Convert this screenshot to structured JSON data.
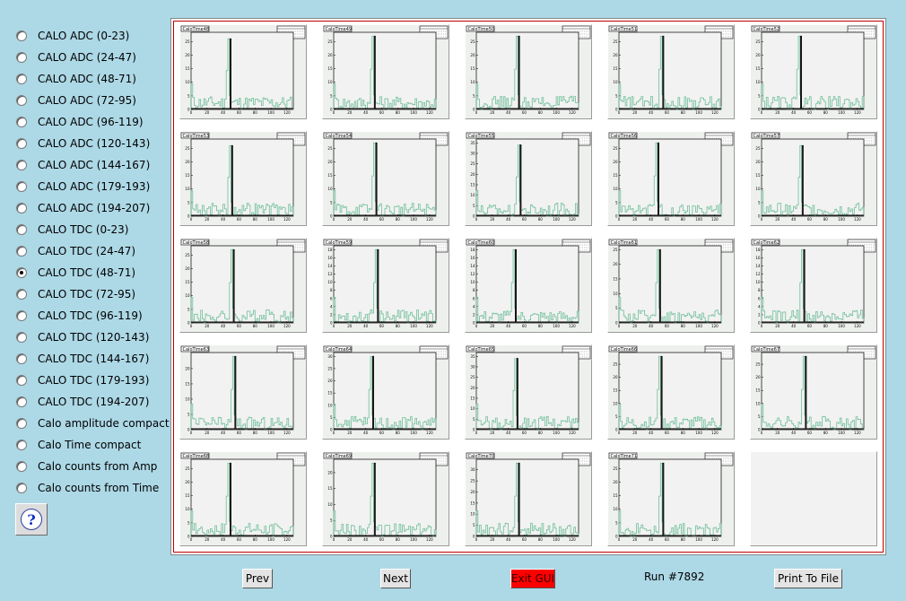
{
  "sidebar": {
    "options": [
      {
        "label": "CALO ADC (0-23)",
        "selected": false
      },
      {
        "label": "CALO ADC (24-47)",
        "selected": false
      },
      {
        "label": "CALO ADC (48-71)",
        "selected": false
      },
      {
        "label": "CALO ADC (72-95)",
        "selected": false
      },
      {
        "label": "CALO ADC (96-119)",
        "selected": false
      },
      {
        "label": "CALO ADC (120-143)",
        "selected": false
      },
      {
        "label": "CALO ADC (144-167)",
        "selected": false
      },
      {
        "label": "CALO ADC (179-193)",
        "selected": false
      },
      {
        "label": "CALO ADC (194-207)",
        "selected": false
      },
      {
        "label": "CALO TDC (0-23)",
        "selected": false
      },
      {
        "label": "CALO TDC (24-47)",
        "selected": false
      },
      {
        "label": "CALO TDC (48-71)",
        "selected": true
      },
      {
        "label": "CALO TDC (72-95)",
        "selected": false
      },
      {
        "label": "CALO TDC (96-119)",
        "selected": false
      },
      {
        "label": "CALO TDC (120-143)",
        "selected": false
      },
      {
        "label": "CALO TDC (144-167)",
        "selected": false
      },
      {
        "label": "CALO TDC (179-193)",
        "selected": false
      },
      {
        "label": "CALO TDC (194-207)",
        "selected": false
      },
      {
        "label": "Calo amplitude compact",
        "selected": false
      },
      {
        "label": "Calo Time compact",
        "selected": false
      },
      {
        "label": "Calo counts from Amp",
        "selected": false
      },
      {
        "label": "Calo counts from Time",
        "selected": false
      }
    ],
    "help_icon": "question-mark-icon"
  },
  "canvas": {
    "histograms": [
      {
        "title": "CaloTime48",
        "peak": 26,
        "ymax": 27
      },
      {
        "title": "CaloTime49",
        "peak": 27,
        "ymax": 27
      },
      {
        "title": "CaloTime50",
        "peak": 27,
        "ymax": 27
      },
      {
        "title": "CaloTime51",
        "peak": 27,
        "ymax": 27
      },
      {
        "title": "CaloTime52",
        "peak": 27,
        "ymax": 27
      },
      {
        "title": "CaloTime53",
        "peak": 26,
        "ymax": 27
      },
      {
        "title": "CaloTime54",
        "peak": 27,
        "ymax": 27
      },
      {
        "title": "CaloTime55",
        "peak": 34,
        "ymax": 35
      },
      {
        "title": "CaloTime56",
        "peak": 27,
        "ymax": 27
      },
      {
        "title": "CaloTime57",
        "peak": 26,
        "ymax": 27
      },
      {
        "title": "CaloTime58",
        "peak": 27,
        "ymax": 27
      },
      {
        "title": "CaloTime59",
        "peak": 18,
        "ymax": 18
      },
      {
        "title": "CaloTime60",
        "peak": 18,
        "ymax": 18
      },
      {
        "title": "CaloTime61",
        "peak": 25,
        "ymax": 25
      },
      {
        "title": "CaloTime62",
        "peak": 18,
        "ymax": 18
      },
      {
        "title": "CaloTime63",
        "peak": 24,
        "ymax": 24
      },
      {
        "title": "CaloTime64",
        "peak": 30,
        "ymax": 30
      },
      {
        "title": "CaloTime65",
        "peak": 34,
        "ymax": 35
      },
      {
        "title": "CaloTime66",
        "peak": 28,
        "ymax": 28
      },
      {
        "title": "CaloTime67",
        "peak": 28,
        "ymax": 28
      },
      {
        "title": "CaloTime68",
        "peak": 27,
        "ymax": 27
      },
      {
        "title": "CaloTime69",
        "peak": 23,
        "ymax": 23
      },
      {
        "title": "CaloTime70",
        "peak": 33,
        "ymax": 33
      },
      {
        "title": "CaloTime71",
        "peak": 27,
        "ymax": 27
      }
    ],
    "x_ticks": [
      "0",
      "20",
      "40",
      "60",
      "80",
      "100",
      "120"
    ],
    "colors": {
      "fill_series": "#6fbf9a",
      "line_series": "#000000",
      "frame": "#c00000"
    }
  },
  "footer": {
    "prev_label": "Prev",
    "next_label": "Next",
    "exit_label": "Exit GUI",
    "run_label": "Run #7892",
    "print_label": "Print To File"
  }
}
